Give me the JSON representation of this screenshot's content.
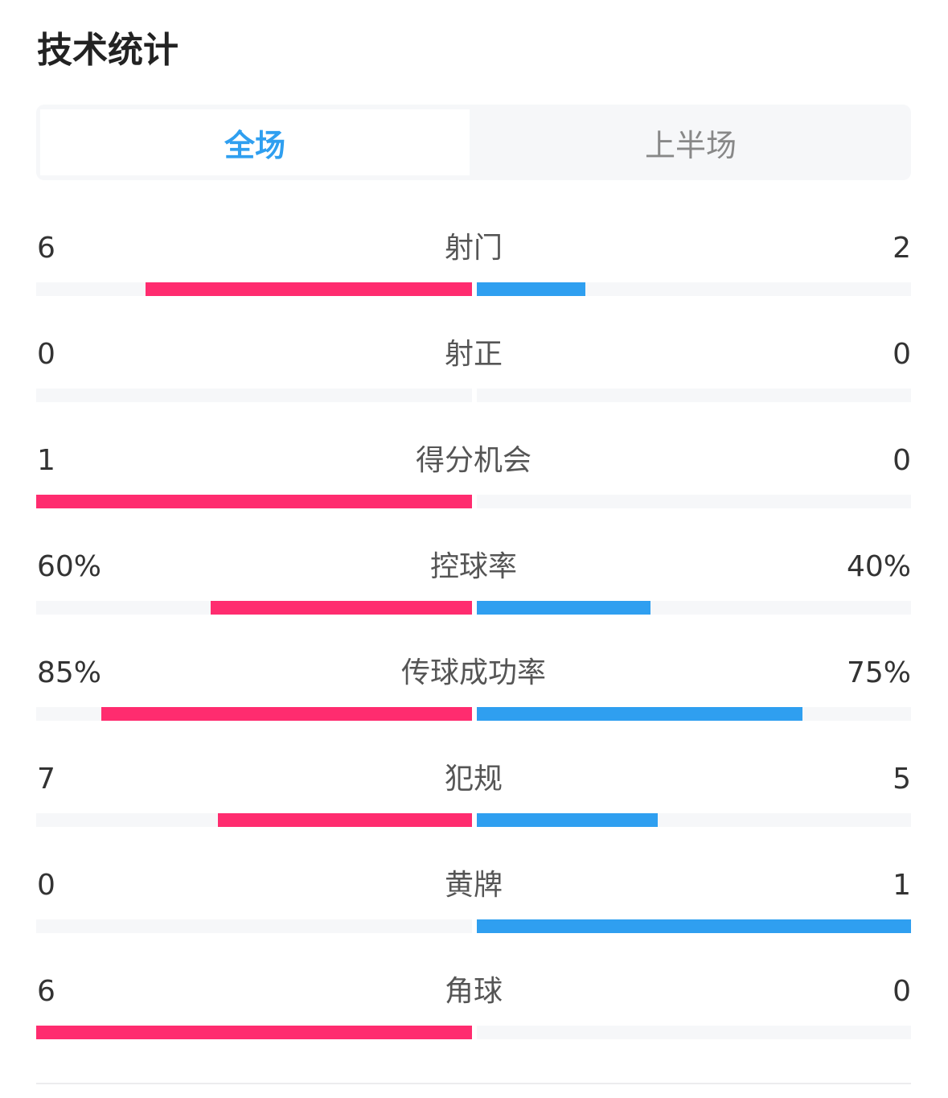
{
  "title": "技术统计",
  "tabs": [
    {
      "label": "全场",
      "active": true
    },
    {
      "label": "上半场",
      "active": false
    }
  ],
  "colors": {
    "home": "#ff2c6f",
    "away": "#2f9ff0",
    "active_tab": "#2f9ff0",
    "track": "#f6f7f9"
  },
  "stats": [
    {
      "label": "射门",
      "home": "6",
      "away": "2",
      "home_fill": 0.75,
      "away_fill": 0.25
    },
    {
      "label": "射正",
      "home": "0",
      "away": "0",
      "home_fill": 0,
      "away_fill": 0
    },
    {
      "label": "得分机会",
      "home": "1",
      "away": "0",
      "home_fill": 1,
      "away_fill": 0
    },
    {
      "label": "控球率",
      "home": "60%",
      "away": "40%",
      "home_fill": 0.6,
      "away_fill": 0.4
    },
    {
      "label": "传球成功率",
      "home": "85%",
      "away": "75%",
      "home_fill": 0.85,
      "away_fill": 0.75
    },
    {
      "label": "犯规",
      "home": "7",
      "away": "5",
      "home_fill": 0.583,
      "away_fill": 0.417
    },
    {
      "label": "黄牌",
      "home": "0",
      "away": "1",
      "home_fill": 0,
      "away_fill": 1
    },
    {
      "label": "角球",
      "home": "6",
      "away": "0",
      "home_fill": 1,
      "away_fill": 0
    }
  ]
}
